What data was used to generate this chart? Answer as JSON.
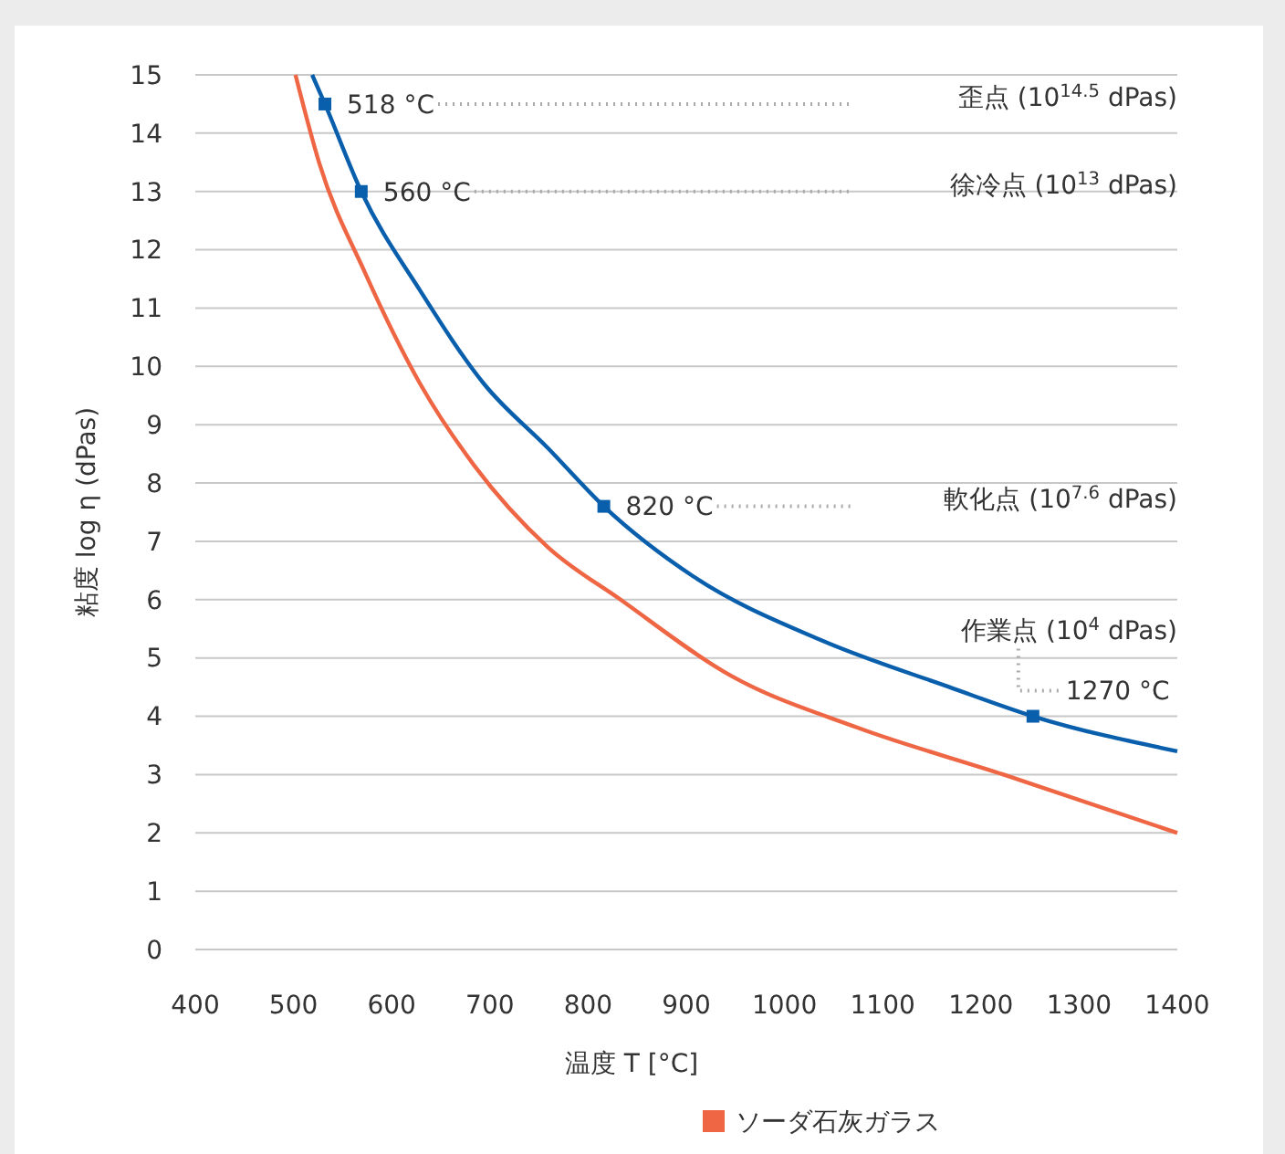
{
  "chart_data": {
    "type": "line",
    "xlabel": "温度 T [°C]",
    "ylabel": "粘度 log η (dPas)",
    "xlim": [
      400,
      1400
    ],
    "xticks": [
      400,
      500,
      600,
      700,
      800,
      900,
      1000,
      1100,
      1200,
      1300,
      1400
    ],
    "ylim": [
      0,
      15
    ],
    "yticks": [
      0,
      1,
      2,
      3,
      4,
      5,
      6,
      7,
      8,
      9,
      10,
      11,
      12,
      13,
      14,
      15
    ],
    "grid": "y",
    "legend": "bottom",
    "line_style": "solid",
    "series": [
      {
        "color": "#0a5fad",
        "x": [
          519,
          532,
          569,
          629,
          694,
          759,
          816,
          907,
          1038,
          1168,
          1253,
          1400
        ],
        "values": [
          15.0,
          14.5,
          13.0,
          11.3,
          9.7,
          8.6,
          7.6,
          6.4,
          5.3,
          4.5,
          4.0,
          3.4
        ]
      },
      {
        "name": "ソーダ石灰ガラス",
        "color": "#ee6644",
        "x": [
          502,
          526,
          573,
          629,
          684,
          759,
          833,
          945,
          1075,
          1223,
          1400
        ],
        "values": [
          15.0,
          13.5,
          11.6,
          9.7,
          8.3,
          6.9,
          6.0,
          4.7,
          3.8,
          3.0,
          2.0
        ]
      },
      {
        "type": "scatter",
        "marker": "square",
        "color": "#0a5fad",
        "x": [
          532,
          569,
          816,
          1253
        ],
        "values": [
          14.5,
          13.0,
          7.6,
          4.0
        ]
      }
    ],
    "annotations": [
      {
        "text": "518 °C",
        "x": 532,
        "y": 14.5
      },
      "歪点 (10$^{14.5}$ dPas)",
      {
        "text": "560 °C",
        "x": 569,
        "y": 13.0
      },
      "徐冷点 (10$^{13}$ dPas)",
      {
        "text": "820 °C",
        "x": 816,
        "y": 7.6
      },
      "軟化点 (10$^{7.6}$ dPas)",
      "作業点 (10$^{4}$ dPas)",
      {
        "text": "1270 °C",
        "x": 1253,
        "y": 4.0
      }
    ]
  }
}
